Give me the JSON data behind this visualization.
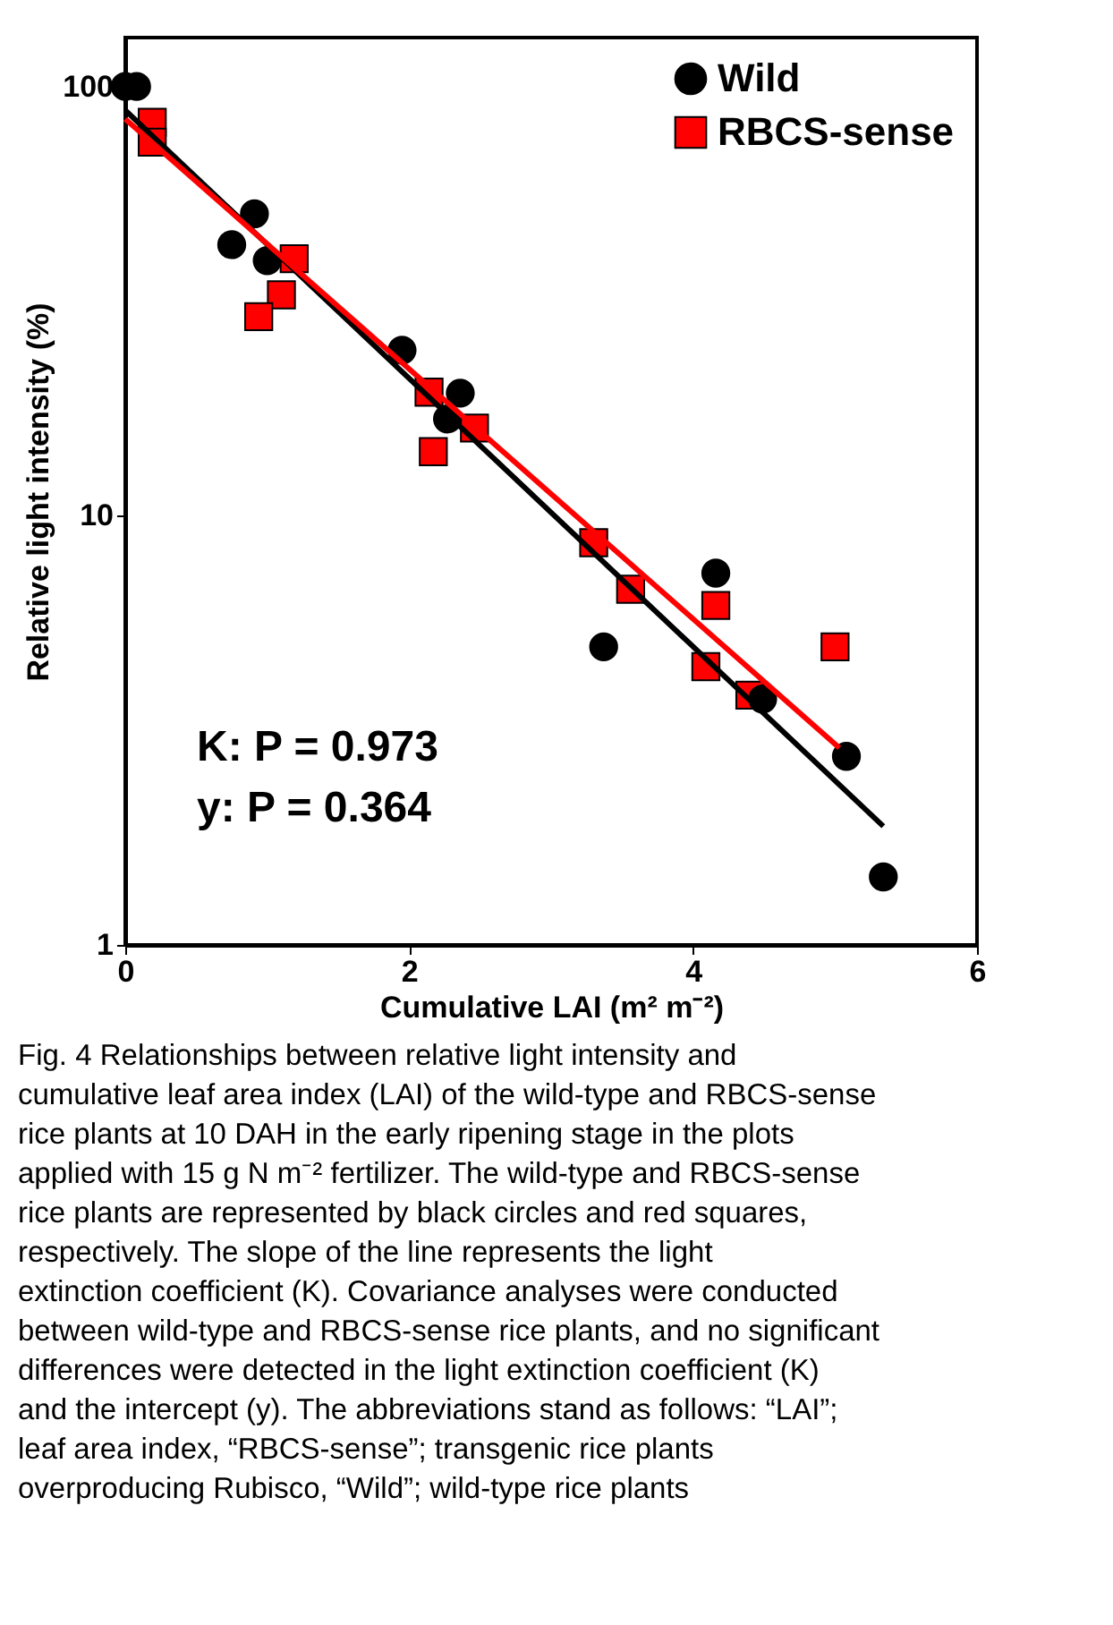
{
  "chart_data": {
    "type": "scatter",
    "xlabel": "Cumulative LAI (m² m⁻²)",
    "ylabel": "Relative light intensity (%)",
    "xlim": [
      0,
      6
    ],
    "xticks": [
      0,
      2,
      4,
      6
    ],
    "ylim": [
      1,
      130
    ],
    "yticks": [
      1,
      10,
      100
    ],
    "log": "y",
    "grid": false,
    "legend": "top right",
    "series": [
      {
        "name": "Wild",
        "marker": "circle",
        "color": "#000000",
        "x": [
          0,
          0.08,
          0.91,
          0.75,
          1.0,
          1.95,
          2.36,
          2.27,
          3.37,
          4.16,
          4.49,
          5.08,
          5.34
        ],
        "values": [
          100,
          100,
          50.5,
          42.8,
          39.3,
          24.3,
          19.3,
          16.8,
          4.95,
          7.35,
          3.74,
          2.75,
          1.44
        ]
      },
      {
        "name": "RBCS-sense",
        "marker": "square",
        "color": "#ff0000",
        "x": [
          0.19,
          0.19,
          1.19,
          1.1,
          0.94,
          2.14,
          2.17,
          2.46,
          3.3,
          3.56,
          4.16,
          4.09,
          4.4,
          5.0
        ],
        "values": [
          82.5,
          74.2,
          39.7,
          32.7,
          29.1,
          19.4,
          14.1,
          16.0,
          8.65,
          6.74,
          6.18,
          4.45,
          3.82,
          4.95
        ]
      },
      {
        "type": "line",
        "color": "#000000",
        "line_style": "solid",
        "x": [
          0,
          5.34
        ],
        "values": [
          88,
          1.89
        ]
      },
      {
        "type": "line",
        "color": "#ff0000",
        "line_style": "solid",
        "x": [
          0,
          5.03
        ],
        "values": [
          84,
          2.88
        ]
      }
    ],
    "annotations": [
      "K: P = 0.973",
      "y: P = 0.364",
      "Fig. 4  Relationships between relative light intensity and cumulative leaf area index (LAI) of the wild-type and RBCS-sense rice plants at 10 DAH in the early ripening stage in the plots applied with 15 g N m⁻² fertilizer. The wild-type and RBCS-sense rice plants are represented by black circles and red squares, respectively. The slope of the line represents the light extinction coefficient (K). Covariance analyses were conducted between wild-type and RBCS-sense rice plants, and no significant differences were detected in the light extinction coefficient (K) and the intercept (y). The abbreviations stand as follows: “LAI”; leaf area index, “RBCS-sense”; transgenic rice plants overproducing Rubisco, “Wild”; wild-type rice plants"
    ]
  }
}
